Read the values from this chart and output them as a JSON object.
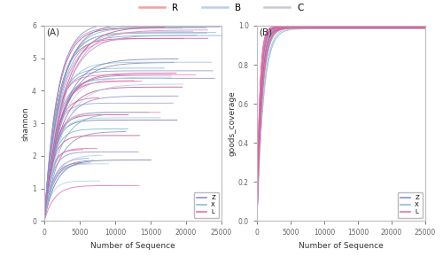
{
  "panel_A_label": "(A)",
  "panel_B_label": "(B)",
  "xlabel": "Number of Sequence",
  "ylabel_A": "shannon",
  "ylabel_B": "goods_coverage",
  "xlim": [
    0,
    25000
  ],
  "ylim_A": [
    0,
    6
  ],
  "ylim_B": [
    0.0,
    1.0
  ],
  "xticks": [
    0,
    5000,
    10000,
    15000,
    20000,
    25000
  ],
  "yticks_A": [
    0,
    1,
    2,
    3,
    4,
    5,
    6
  ],
  "yticks_B": [
    0.0,
    0.2,
    0.4,
    0.6,
    0.8,
    1.0
  ],
  "top_legend_R_color": "#f4a0a0",
  "top_legend_B_color": "#b8d0e8",
  "top_legend_C_color": "#c8c8d0",
  "group_Z_colors": [
    "#9090c8",
    "#8888c0",
    "#9898d0",
    "#a0a0d8",
    "#8080b8",
    "#7878b0"
  ],
  "group_X_colors": [
    "#90c0d8",
    "#88b8d0",
    "#a0cce0",
    "#98c4dc",
    "#80b0cc",
    "#b0d0e8"
  ],
  "group_L_colors": [
    "#e870a8",
    "#e060a0",
    "#f080b8",
    "#d85898",
    "#e878b0",
    "#cc5090"
  ],
  "background_color": "#ffffff",
  "spine_color": "#bbbbbb",
  "tick_color": "#666666",
  "label_color": "#333333"
}
